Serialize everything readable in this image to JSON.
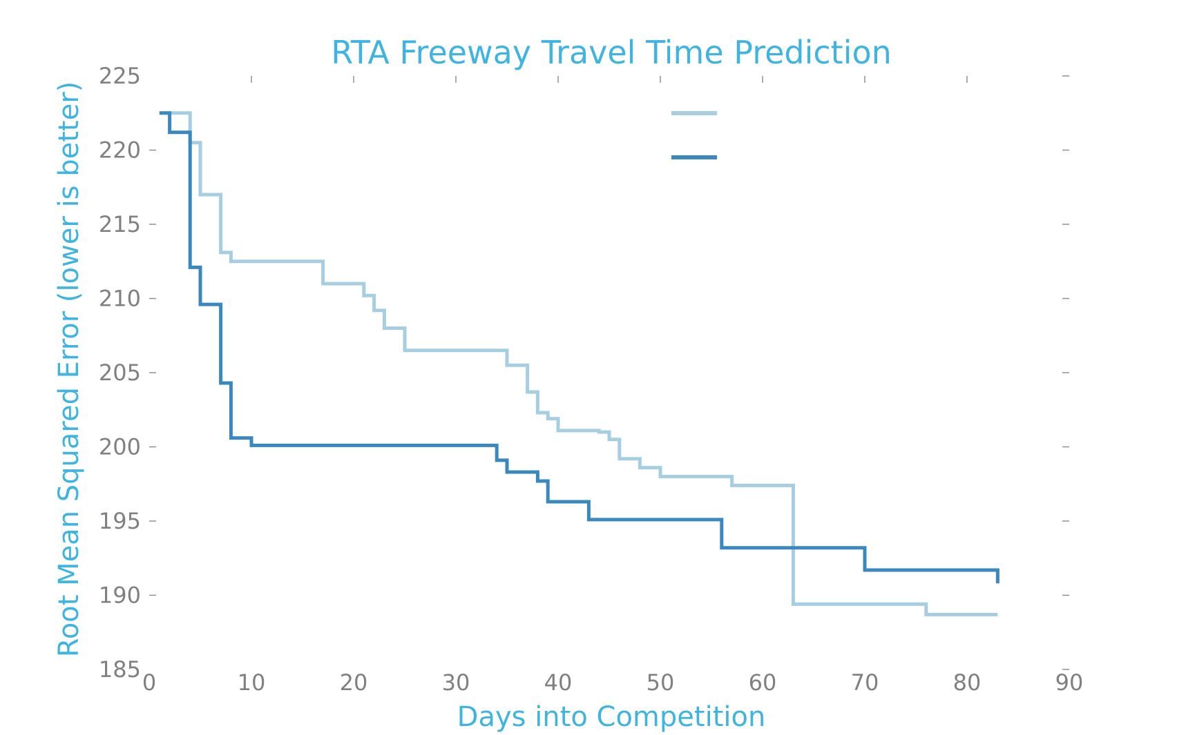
{
  "chart_data": {
    "type": "line",
    "step": true,
    "title": "RTA Freeway Travel Time Prediction",
    "xlabel": "Days into Competition",
    "ylabel": "Root Mean Squared Error (lower is better)",
    "xlim": [
      0,
      90
    ],
    "ylim": [
      185,
      225
    ],
    "xticks": [
      0,
      10,
      20,
      30,
      40,
      50,
      60,
      70,
      80,
      90
    ],
    "yticks": [
      185,
      190,
      195,
      200,
      205,
      210,
      215,
      220,
      225
    ],
    "xtick_labels": [
      "0",
      "10",
      "20",
      "30",
      "40",
      "50",
      "60",
      "70",
      "80",
      "90"
    ],
    "ytick_labels": [
      "185",
      "190",
      "195",
      "200",
      "205",
      "210",
      "215",
      "220",
      "225"
    ],
    "grid": false,
    "legend_position": "upper-center",
    "series": [
      {
        "color": "#a6cee3",
        "x": [
          1,
          4,
          5,
          7,
          8,
          17,
          21,
          22,
          23,
          25,
          35,
          37,
          38,
          39,
          40,
          44,
          45,
          46,
          48,
          50,
          57,
          63,
          76,
          83
        ],
        "y": [
          222.5,
          220.5,
          217.0,
          213.1,
          212.5,
          211.0,
          210.2,
          209.2,
          208.0,
          206.5,
          205.5,
          203.7,
          202.3,
          201.9,
          201.1,
          201.0,
          200.5,
          199.2,
          198.6,
          198.0,
          197.4,
          189.4,
          188.7,
          188.7
        ]
      },
      {
        "color": "#3a88c0",
        "x": [
          1,
          2,
          4,
          5,
          7,
          8,
          10,
          34,
          35,
          38,
          39,
          43,
          56,
          70,
          83
        ],
        "y": [
          222.5,
          221.2,
          212.1,
          209.6,
          204.3,
          200.6,
          200.1,
          199.1,
          198.3,
          197.7,
          196.3,
          195.1,
          193.2,
          191.7,
          190.8
        ]
      }
    ]
  }
}
